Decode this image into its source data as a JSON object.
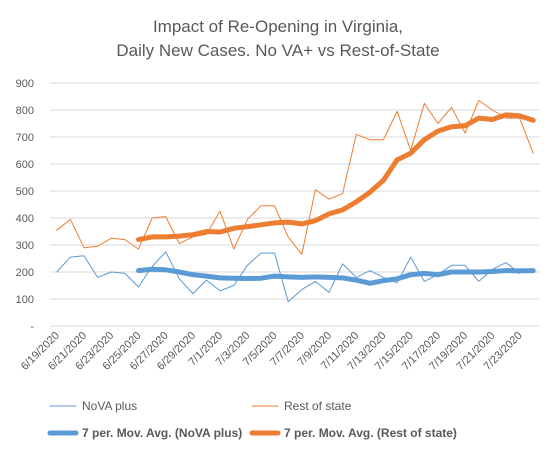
{
  "chart_data": {
    "type": "line",
    "title_lines": [
      "Impact of Re-Opening in Virginia,",
      "Daily New Cases. No VA+ vs Rest-of-State"
    ],
    "xlabel": "",
    "ylabel": "",
    "ylim": [
      0,
      900
    ],
    "yticks": [
      {
        "value": 0,
        "label": "-"
      },
      {
        "value": 100,
        "label": "100"
      },
      {
        "value": 200,
        "label": "200"
      },
      {
        "value": 300,
        "label": "300"
      },
      {
        "value": 400,
        "label": "400"
      },
      {
        "value": 500,
        "label": "500"
      },
      {
        "value": 600,
        "label": "600"
      },
      {
        "value": 700,
        "label": "700"
      },
      {
        "value": 800,
        "label": "800"
      },
      {
        "value": 900,
        "label": "900"
      }
    ],
    "grid": true,
    "legend_position": "bottom",
    "x": [
      "6/19/2020",
      "6/20/2020",
      "6/21/2020",
      "6/22/2020",
      "6/23/2020",
      "6/24/2020",
      "6/25/2020",
      "6/26/2020",
      "6/27/2020",
      "6/28/2020",
      "6/29/2020",
      "6/30/2020",
      "7/1/2020",
      "7/2/2020",
      "7/3/2020",
      "7/4/2020",
      "7/5/2020",
      "7/6/2020",
      "7/7/2020",
      "7/8/2020",
      "7/9/2020",
      "7/10/2020",
      "7/11/2020",
      "7/12/2020",
      "7/13/2020",
      "7/14/2020",
      "7/15/2020",
      "7/16/2020",
      "7/17/2020",
      "7/18/2020",
      "7/19/2020",
      "7/20/2020",
      "7/21/2020",
      "7/22/2020",
      "7/23/2020",
      "7/24/2020"
    ],
    "x_tick_labels": [
      "6/19/2020",
      "6/21/2020",
      "6/23/2020",
      "6/25/2020",
      "6/27/2020",
      "6/29/2020",
      "7/1/2020",
      "7/3/2020",
      "7/5/2020",
      "7/7/2020",
      "7/9/2020",
      "7/11/2020",
      "7/13/2020",
      "7/15/2020",
      "7/17/2020",
      "7/19/2020",
      "7/21/2020",
      "7/23/2020"
    ],
    "series": [
      {
        "name": "NoVA plus",
        "color": "#5b9bd5",
        "style": "thin",
        "values": [
          200,
          255,
          260,
          180,
          200,
          195,
          145,
          220,
          275,
          175,
          120,
          170,
          130,
          150,
          225,
          270,
          270,
          90,
          135,
          165,
          125,
          230,
          180,
          205,
          180,
          160,
          255,
          165,
          190,
          225,
          225,
          165,
          210,
          235,
          195,
          null
        ]
      },
      {
        "name": "Rest of state",
        "color": "#ed7d31",
        "style": "thin",
        "values": [
          355,
          395,
          290,
          295,
          325,
          320,
          285,
          400,
          405,
          305,
          330,
          340,
          425,
          285,
          395,
          445,
          445,
          330,
          265,
          505,
          470,
          490,
          710,
          690,
          690,
          795,
          650,
          825,
          750,
          810,
          715,
          835,
          800,
          770,
          770,
          640
        ]
      },
      {
        "name": "7 per. Mov. Avg. (NoVA plus)",
        "color": "#5b9bd5",
        "style": "thick",
        "values": [
          null,
          null,
          null,
          null,
          null,
          null,
          205,
          210,
          208,
          200,
          190,
          185,
          178,
          177,
          176,
          177,
          185,
          182,
          180,
          182,
          180,
          178,
          170,
          158,
          168,
          175,
          190,
          195,
          190,
          200,
          200,
          200,
          202,
          205,
          204,
          205
        ]
      },
      {
        "name": "7 per. Mov. Avg. (Rest of state)",
        "color": "#ed7d31",
        "style": "thick",
        "values": [
          null,
          null,
          null,
          null,
          null,
          null,
          320,
          330,
          330,
          333,
          338,
          350,
          348,
          362,
          368,
          375,
          382,
          385,
          378,
          390,
          415,
          430,
          460,
          495,
          540,
          615,
          640,
          690,
          722,
          738,
          742,
          770,
          765,
          782,
          778,
          762
        ]
      }
    ]
  }
}
